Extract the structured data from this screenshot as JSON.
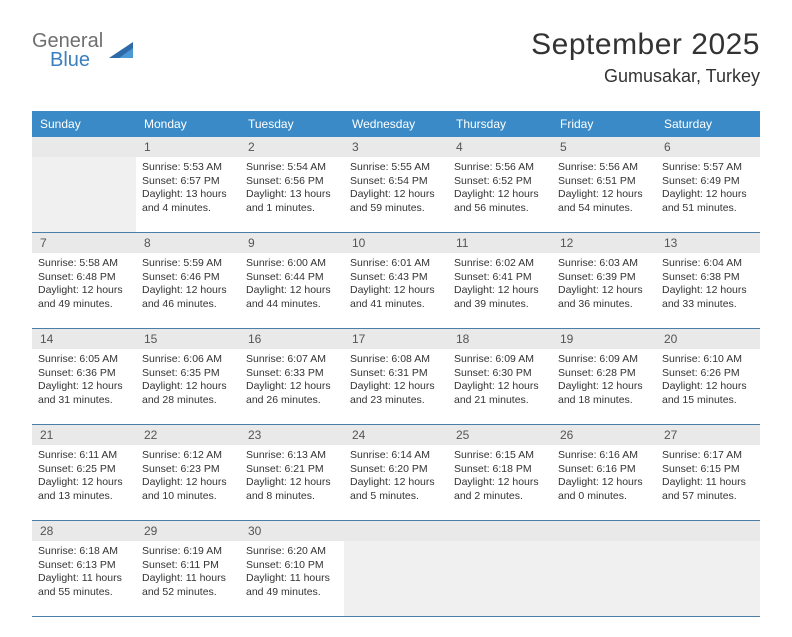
{
  "logo": {
    "word1": "General",
    "word2": "Blue"
  },
  "title": "September 2025",
  "subtitle": "Gumusakar, Turkey",
  "colors": {
    "header_bg": "#3a8ac7",
    "header_text": "#ffffff",
    "daynum_bg": "#e9e9e9",
    "empty_bg": "#f0f0f0",
    "border": "#4b7fa8",
    "text": "#333333",
    "logo_grey": "#6f6f6f",
    "logo_blue": "#3a7fc0"
  },
  "day_names": [
    "Sunday",
    "Monday",
    "Tuesday",
    "Wednesday",
    "Thursday",
    "Friday",
    "Saturday"
  ],
  "weeks": [
    {
      "nums": [
        "",
        "1",
        "2",
        "3",
        "4",
        "5",
        "6"
      ],
      "cells": [
        null,
        {
          "sunrise": "Sunrise: 5:53 AM",
          "sunset": "Sunset: 6:57 PM",
          "day1": "Daylight: 13 hours",
          "day2": "and 4 minutes."
        },
        {
          "sunrise": "Sunrise: 5:54 AM",
          "sunset": "Sunset: 6:56 PM",
          "day1": "Daylight: 13 hours",
          "day2": "and 1 minutes."
        },
        {
          "sunrise": "Sunrise: 5:55 AM",
          "sunset": "Sunset: 6:54 PM",
          "day1": "Daylight: 12 hours",
          "day2": "and 59 minutes."
        },
        {
          "sunrise": "Sunrise: 5:56 AM",
          "sunset": "Sunset: 6:52 PM",
          "day1": "Daylight: 12 hours",
          "day2": "and 56 minutes."
        },
        {
          "sunrise": "Sunrise: 5:56 AM",
          "sunset": "Sunset: 6:51 PM",
          "day1": "Daylight: 12 hours",
          "day2": "and 54 minutes."
        },
        {
          "sunrise": "Sunrise: 5:57 AM",
          "sunset": "Sunset: 6:49 PM",
          "day1": "Daylight: 12 hours",
          "day2": "and 51 minutes."
        }
      ]
    },
    {
      "nums": [
        "7",
        "8",
        "9",
        "10",
        "11",
        "12",
        "13"
      ],
      "cells": [
        {
          "sunrise": "Sunrise: 5:58 AM",
          "sunset": "Sunset: 6:48 PM",
          "day1": "Daylight: 12 hours",
          "day2": "and 49 minutes."
        },
        {
          "sunrise": "Sunrise: 5:59 AM",
          "sunset": "Sunset: 6:46 PM",
          "day1": "Daylight: 12 hours",
          "day2": "and 46 minutes."
        },
        {
          "sunrise": "Sunrise: 6:00 AM",
          "sunset": "Sunset: 6:44 PM",
          "day1": "Daylight: 12 hours",
          "day2": "and 44 minutes."
        },
        {
          "sunrise": "Sunrise: 6:01 AM",
          "sunset": "Sunset: 6:43 PM",
          "day1": "Daylight: 12 hours",
          "day2": "and 41 minutes."
        },
        {
          "sunrise": "Sunrise: 6:02 AM",
          "sunset": "Sunset: 6:41 PM",
          "day1": "Daylight: 12 hours",
          "day2": "and 39 minutes."
        },
        {
          "sunrise": "Sunrise: 6:03 AM",
          "sunset": "Sunset: 6:39 PM",
          "day1": "Daylight: 12 hours",
          "day2": "and 36 minutes."
        },
        {
          "sunrise": "Sunrise: 6:04 AM",
          "sunset": "Sunset: 6:38 PM",
          "day1": "Daylight: 12 hours",
          "day2": "and 33 minutes."
        }
      ]
    },
    {
      "nums": [
        "14",
        "15",
        "16",
        "17",
        "18",
        "19",
        "20"
      ],
      "cells": [
        {
          "sunrise": "Sunrise: 6:05 AM",
          "sunset": "Sunset: 6:36 PM",
          "day1": "Daylight: 12 hours",
          "day2": "and 31 minutes."
        },
        {
          "sunrise": "Sunrise: 6:06 AM",
          "sunset": "Sunset: 6:35 PM",
          "day1": "Daylight: 12 hours",
          "day2": "and 28 minutes."
        },
        {
          "sunrise": "Sunrise: 6:07 AM",
          "sunset": "Sunset: 6:33 PM",
          "day1": "Daylight: 12 hours",
          "day2": "and 26 minutes."
        },
        {
          "sunrise": "Sunrise: 6:08 AM",
          "sunset": "Sunset: 6:31 PM",
          "day1": "Daylight: 12 hours",
          "day2": "and 23 minutes."
        },
        {
          "sunrise": "Sunrise: 6:09 AM",
          "sunset": "Sunset: 6:30 PM",
          "day1": "Daylight: 12 hours",
          "day2": "and 21 minutes."
        },
        {
          "sunrise": "Sunrise: 6:09 AM",
          "sunset": "Sunset: 6:28 PM",
          "day1": "Daylight: 12 hours",
          "day2": "and 18 minutes."
        },
        {
          "sunrise": "Sunrise: 6:10 AM",
          "sunset": "Sunset: 6:26 PM",
          "day1": "Daylight: 12 hours",
          "day2": "and 15 minutes."
        }
      ]
    },
    {
      "nums": [
        "21",
        "22",
        "23",
        "24",
        "25",
        "26",
        "27"
      ],
      "cells": [
        {
          "sunrise": "Sunrise: 6:11 AM",
          "sunset": "Sunset: 6:25 PM",
          "day1": "Daylight: 12 hours",
          "day2": "and 13 minutes."
        },
        {
          "sunrise": "Sunrise: 6:12 AM",
          "sunset": "Sunset: 6:23 PM",
          "day1": "Daylight: 12 hours",
          "day2": "and 10 minutes."
        },
        {
          "sunrise": "Sunrise: 6:13 AM",
          "sunset": "Sunset: 6:21 PM",
          "day1": "Daylight: 12 hours",
          "day2": "and 8 minutes."
        },
        {
          "sunrise": "Sunrise: 6:14 AM",
          "sunset": "Sunset: 6:20 PM",
          "day1": "Daylight: 12 hours",
          "day2": "and 5 minutes."
        },
        {
          "sunrise": "Sunrise: 6:15 AM",
          "sunset": "Sunset: 6:18 PM",
          "day1": "Daylight: 12 hours",
          "day2": "and 2 minutes."
        },
        {
          "sunrise": "Sunrise: 6:16 AM",
          "sunset": "Sunset: 6:16 PM",
          "day1": "Daylight: 12 hours",
          "day2": "and 0 minutes."
        },
        {
          "sunrise": "Sunrise: 6:17 AM",
          "sunset": "Sunset: 6:15 PM",
          "day1": "Daylight: 11 hours",
          "day2": "and 57 minutes."
        }
      ]
    },
    {
      "nums": [
        "28",
        "29",
        "30",
        "",
        "",
        "",
        ""
      ],
      "cells": [
        {
          "sunrise": "Sunrise: 6:18 AM",
          "sunset": "Sunset: 6:13 PM",
          "day1": "Daylight: 11 hours",
          "day2": "and 55 minutes."
        },
        {
          "sunrise": "Sunrise: 6:19 AM",
          "sunset": "Sunset: 6:11 PM",
          "day1": "Daylight: 11 hours",
          "day2": "and 52 minutes."
        },
        {
          "sunrise": "Sunrise: 6:20 AM",
          "sunset": "Sunset: 6:10 PM",
          "day1": "Daylight: 11 hours",
          "day2": "and 49 minutes."
        },
        null,
        null,
        null,
        null
      ]
    }
  ]
}
